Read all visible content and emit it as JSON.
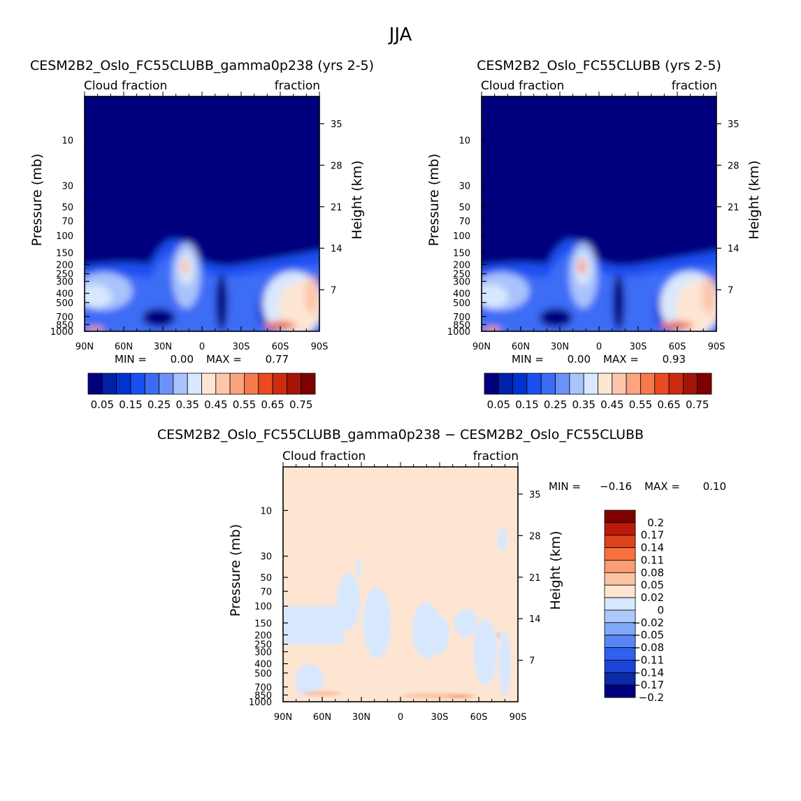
{
  "figure": {
    "title": "JJA"
  },
  "axis_labels": {
    "left": "Pressure (mb)",
    "right": "Height (km)",
    "top_left": "Cloud fraction",
    "top_right": "fraction"
  },
  "chart_data": [
    {
      "type": "heatmap",
      "title": "CESM2B2_Oslo_FC55CLUBB_gamma0p238 (yrs 2-5)",
      "x_ticks": [
        "90N",
        "60N",
        "30N",
        "0",
        "30S",
        "60S",
        "90S"
      ],
      "x_values": [
        90,
        60,
        30,
        0,
        -30,
        -60,
        -90
      ],
      "y_ticks": [
        "10",
        "30",
        "50",
        "70",
        "100",
        "150",
        "200",
        "250",
        "300",
        "400",
        "500",
        "700",
        "850",
        "1000"
      ],
      "y_values": [
        10,
        30,
        50,
        70,
        100,
        150,
        200,
        250,
        300,
        400,
        500,
        700,
        850,
        1000
      ],
      "ylim": [
        3.5,
        1000
      ],
      "y_log": true,
      "height_ticks": [
        "35",
        "28",
        "21",
        "14",
        "7"
      ],
      "min_label": "MIN =",
      "min_value": "0.00",
      "max_label": "MAX =",
      "max_value": "0.77",
      "colorbar_labels": [
        "0.05",
        "0.15",
        "0.25",
        "0.35",
        "0.45",
        "0.55",
        "0.65",
        "0.75"
      ]
    },
    {
      "type": "heatmap",
      "title": "CESM2B2_Oslo_FC55CLUBB (yrs 2-5)",
      "x_ticks": [
        "90N",
        "60N",
        "30N",
        "0",
        "30S",
        "60S",
        "90S"
      ],
      "x_values": [
        90,
        60,
        30,
        0,
        -30,
        -60,
        -90
      ],
      "y_ticks": [
        "10",
        "30",
        "50",
        "70",
        "100",
        "150",
        "200",
        "250",
        "300",
        "400",
        "500",
        "700",
        "850",
        "1000"
      ],
      "y_values": [
        10,
        30,
        50,
        70,
        100,
        150,
        200,
        250,
        300,
        400,
        500,
        700,
        850,
        1000
      ],
      "ylim": [
        3.5,
        1000
      ],
      "y_log": true,
      "height_ticks": [
        "35",
        "28",
        "21",
        "14",
        "7"
      ],
      "min_label": "MIN =",
      "min_value": "0.00",
      "max_label": "MAX =",
      "max_value": "0.93",
      "colorbar_labels": [
        "0.05",
        "0.15",
        "0.25",
        "0.35",
        "0.45",
        "0.55",
        "0.65",
        "0.75"
      ]
    },
    {
      "type": "heatmap",
      "title": "CESM2B2_Oslo_FC55CLUBB_gamma0p238 − CESM2B2_Oslo_FC55CLUBB",
      "x_ticks": [
        "90N",
        "60N",
        "30N",
        "0",
        "30S",
        "60S",
        "90S"
      ],
      "x_values": [
        90,
        60,
        30,
        0,
        -30,
        -60,
        -90
      ],
      "y_ticks": [
        "10",
        "30",
        "50",
        "70",
        "100",
        "150",
        "200",
        "250",
        "300",
        "400",
        "500",
        "700",
        "850",
        "1000"
      ],
      "y_values": [
        10,
        30,
        50,
        70,
        100,
        150,
        200,
        250,
        300,
        400,
        500,
        700,
        850,
        1000
      ],
      "ylim": [
        3.5,
        1000
      ],
      "y_log": true,
      "height_ticks": [
        "35",
        "28",
        "21",
        "14",
        "7"
      ],
      "min_label": "MIN =",
      "min_value": "−0.16",
      "max_label": "MAX =",
      "max_value": "0.10",
      "colorbar_labels": [
        "0.2",
        "0.17",
        "0.14",
        "0.11",
        "0.08",
        "0.05",
        "0.02",
        "0",
        "−0.02",
        "−0.05",
        "−0.08",
        "−0.11",
        "−0.14",
        "−0.17",
        "−0.2"
      ]
    }
  ],
  "colors": {
    "abs_scale": [
      "#00007f",
      "#0021a8",
      "#0033cc",
      "#1a4ff0",
      "#3c6cf5",
      "#6b93f7",
      "#a9c3fb",
      "#d8e8fe",
      "#fde6d4",
      "#fcc6aa",
      "#fba47f",
      "#f7784c",
      "#ea4a20",
      "#cc2b10",
      "#a31508",
      "#7f0000"
    ],
    "diff_scale": [
      "#7f0000",
      "#bb1a0a",
      "#e0421a",
      "#f9713f",
      "#fb9c72",
      "#fcc4a4",
      "#fde5d2",
      "#d7e7fd",
      "#adc8fa",
      "#80a8f8",
      "#5886f5",
      "#2f60ef",
      "#1b44d6",
      "#0a2aaa",
      "#00007f"
    ],
    "diff_bg": "#fde5d2",
    "diff_neg": "#d7e7fd",
    "diff_neg2": "#adc8fa"
  }
}
